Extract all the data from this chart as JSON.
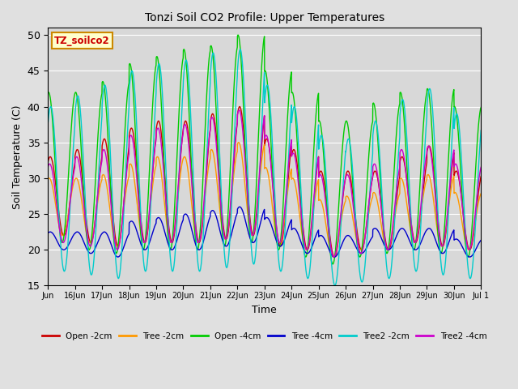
{
  "title": "Tonzi Soil CO2 Profile: Upper Temperatures",
  "xlabel": "Time",
  "ylabel": "Soil Temperature (C)",
  "ylim": [
    15,
    51
  ],
  "yticks": [
    15,
    20,
    25,
    30,
    35,
    40,
    45,
    50
  ],
  "fig_bg": "#e0e0e0",
  "plot_bg": "#d8d8d8",
  "label_box_text": "TZ_soilco2",
  "label_box_color": "#ffffcc",
  "label_box_border": "#cc8800",
  "series": [
    {
      "name": "Open -2cm",
      "color": "#cc0000"
    },
    {
      "name": "Tree -2cm",
      "color": "#ff9900"
    },
    {
      "name": "Open -4cm",
      "color": "#00cc00"
    },
    {
      "name": "Tree -4cm",
      "color": "#0000cc"
    },
    {
      "name": "Tree2 -2cm",
      "color": "#00cccc"
    },
    {
      "name": "Tree2 -4cm",
      "color": "#cc00cc"
    }
  ],
  "n_days": 16,
  "spd": 144,
  "series_params": {
    "open2": {
      "amps": [
        11,
        13,
        15,
        16,
        17,
        17,
        17.5,
        18,
        15,
        14,
        12,
        11,
        11,
        12,
        14,
        11
      ],
      "mins": [
        22,
        21,
        20.5,
        21,
        21,
        21,
        21.5,
        22,
        20.5,
        20,
        19,
        20,
        20,
        21,
        20.5,
        20
      ],
      "phase": 0.0
    },
    "tree2": {
      "amps": [
        8,
        9,
        10,
        11,
        12,
        12,
        12.5,
        13,
        11,
        10,
        8,
        7.5,
        8,
        9,
        10,
        8
      ],
      "mins": [
        22,
        21,
        20.5,
        21,
        21,
        21,
        21.5,
        22,
        20.5,
        20,
        19,
        20,
        20,
        21,
        20.5,
        20
      ],
      "phase": 0.04
    },
    "open4": {
      "amps": [
        21,
        22,
        24,
        26,
        27,
        28,
        28,
        29,
        25,
        23,
        20,
        19,
        21,
        22,
        23,
        21
      ],
      "mins": [
        21,
        20,
        19.5,
        20,
        20,
        20,
        20.5,
        21,
        20,
        19,
        18,
        19,
        19.5,
        20,
        19.5,
        19
      ],
      "phase": 0.06
    },
    "tree4": {
      "amps": [
        2.5,
        3,
        3.5,
        4,
        4.5,
        5,
        5,
        5,
        4,
        3.5,
        3,
        2.5,
        3,
        3,
        3.5,
        2.5
      ],
      "mins": [
        20,
        19.5,
        19,
        20,
        20,
        20,
        20.5,
        21,
        20.5,
        19.5,
        19,
        19.5,
        20,
        20,
        19.5,
        19
      ],
      "phase": 0.0
    },
    "tree22": {
      "amps": [
        23,
        25,
        27,
        28,
        29,
        29.5,
        30,
        30,
        26,
        24,
        21,
        20,
        22,
        24,
        26,
        23
      ],
      "mins": [
        17,
        16.5,
        16,
        17,
        17,
        17,
        17.5,
        18,
        17,
        16,
        15,
        15.5,
        16,
        17,
        16.5,
        16
      ],
      "phase": -0.02
    },
    "tree24": {
      "amps": [
        11,
        12.5,
        14,
        15,
        16,
        16.5,
        17,
        17.5,
        15,
        13.5,
        11.5,
        11,
        12,
        13,
        14,
        12
      ],
      "mins": [
        21,
        20.5,
        20,
        21,
        21,
        21,
        21.5,
        22,
        21,
        20,
        19,
        19.5,
        20,
        21,
        20.5,
        20
      ],
      "phase": 0.02
    }
  }
}
